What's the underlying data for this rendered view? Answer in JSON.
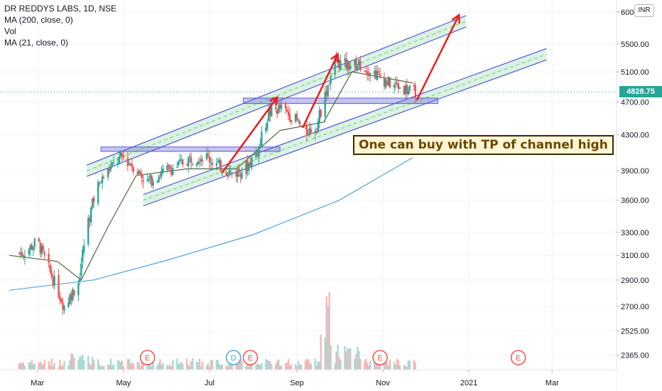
{
  "legend": {
    "title": "DR REDDYS LABS, 1D, NSE",
    "lines": [
      "MA (200, close, 0)",
      "Vol",
      "MA (21, close, 0)"
    ]
  },
  "currency_badge": "INR",
  "annotation_text": "One can buy with TP of channel high",
  "last_price_label": "4828.75",
  "colors": {
    "up": "#26a69a",
    "down": "#ef5350",
    "ma200": "#4fa3e0",
    "ma21": "#4a6b3a",
    "channel": "#3b3bd6",
    "channel_fill": "#d6f1df",
    "zone": "#5b5bd6",
    "arrow": "#ee1c1c",
    "event_red": "#ef5350",
    "event_blue": "#4fa3e0"
  },
  "chart_data": {
    "type": "candlestick",
    "symbol": "DR REDDYS LABS, 1D, NSE",
    "y_axis": {
      "ticks": [
        "6000.00",
        "5500.00",
        "5100.00",
        "4700.00",
        "4300.00",
        "3900.00",
        "3600.00",
        "3300.00",
        "3100.00",
        "2900.00",
        "2700.00",
        "2525.00",
        "2365.00"
      ],
      "scale": "log",
      "range": [
        2300,
        6150
      ]
    },
    "x_axis": {
      "ticks": [
        "Mar",
        "May",
        "Jul",
        "Sep",
        "Nov",
        "2021",
        "Mar"
      ]
    },
    "last_price": 4828.75,
    "close_series": [
      {
        "date": "2020-02-20",
        "close": 3120
      },
      {
        "date": "2020-03-01",
        "close": 3220
      },
      {
        "date": "2020-03-10",
        "close": 2960
      },
      {
        "date": "2020-03-20",
        "close": 2700
      },
      {
        "date": "2020-03-30",
        "close": 2880
      },
      {
        "date": "2020-04-05",
        "close": 3350
      },
      {
        "date": "2020-04-12",
        "close": 3720
      },
      {
        "date": "2020-04-20",
        "close": 3900
      },
      {
        "date": "2020-04-30",
        "close": 4050
      },
      {
        "date": "2020-05-08",
        "close": 3950
      },
      {
        "date": "2020-05-18",
        "close": 3780
      },
      {
        "date": "2020-05-28",
        "close": 3880
      },
      {
        "date": "2020-06-08",
        "close": 3950
      },
      {
        "date": "2020-06-18",
        "close": 4040
      },
      {
        "date": "2020-06-28",
        "close": 4060
      },
      {
        "date": "2020-07-08",
        "close": 3950
      },
      {
        "date": "2020-07-18",
        "close": 3860
      },
      {
        "date": "2020-07-28",
        "close": 3950
      },
      {
        "date": "2020-08-05",
        "close": 4150
      },
      {
        "date": "2020-08-12",
        "close": 4560
      },
      {
        "date": "2020-08-20",
        "close": 4620
      },
      {
        "date": "2020-08-30",
        "close": 4500
      },
      {
        "date": "2020-09-07",
        "close": 4330
      },
      {
        "date": "2020-09-15",
        "close": 4400
      },
      {
        "date": "2020-09-22",
        "close": 4850
      },
      {
        "date": "2020-09-28",
        "close": 5250
      },
      {
        "date": "2020-10-05",
        "close": 5200
      },
      {
        "date": "2020-10-15",
        "close": 5200
      },
      {
        "date": "2020-10-25",
        "close": 5100
      },
      {
        "date": "2020-11-05",
        "close": 4950
      },
      {
        "date": "2020-11-15",
        "close": 4880
      },
      {
        "date": "2020-11-22",
        "close": 4828.75
      }
    ],
    "ma200": [
      {
        "date": "2020-02-10",
        "value": 2820
      },
      {
        "date": "2020-04-10",
        "value": 2900
      },
      {
        "date": "2020-06-01",
        "value": 3060
      },
      {
        "date": "2020-08-01",
        "value": 3280
      },
      {
        "date": "2020-10-01",
        "value": 3600
      },
      {
        "date": "2020-11-22",
        "value": 4040
      }
    ],
    "ma21": [
      {
        "date": "2020-02-10",
        "value": 3100
      },
      {
        "date": "2020-03-15",
        "value": 3050
      },
      {
        "date": "2020-04-01",
        "value": 2900
      },
      {
        "date": "2020-04-20",
        "value": 3350
      },
      {
        "date": "2020-05-10",
        "value": 3850
      },
      {
        "date": "2020-06-15",
        "value": 3920
      },
      {
        "date": "2020-07-20",
        "value": 3920
      },
      {
        "date": "2020-08-20",
        "value": 4350
      },
      {
        "date": "2020-09-20",
        "value": 4450
      },
      {
        "date": "2020-10-10",
        "value": 5100
      },
      {
        "date": "2020-11-22",
        "value": 4950
      }
    ],
    "channels": [
      {
        "start": {
          "date": "2020-04-05",
          "value": 3900
        },
        "end": {
          "date": "2020-12-30",
          "value": 5850
        }
      },
      {
        "start": {
          "date": "2020-05-15",
          "value": 3600
        },
        "end": {
          "date": "2021-02-25",
          "value": 5350
        }
      }
    ],
    "resistance_zones": [
      {
        "start": "2020-04-15",
        "end": "2020-08-20",
        "low": 4110,
        "high": 4160
      },
      {
        "start": "2020-07-25",
        "end": "2020-12-10",
        "low": 4680,
        "high": 4750
      }
    ],
    "arrows": [
      {
        "from": {
          "date": "2020-07-10",
          "value": 3880
        },
        "to": {
          "date": "2020-08-18",
          "value": 4760
        }
      },
      {
        "from": {
          "date": "2020-09-05",
          "value": 4380
        },
        "to": {
          "date": "2020-09-30",
          "value": 5350
        }
      },
      {
        "from": {
          "date": "2020-11-25",
          "value": 4720
        },
        "to": {
          "date": "2020-12-25",
          "value": 5950
        }
      }
    ],
    "events": [
      {
        "date": "2020-05-18",
        "label": "E"
      },
      {
        "date": "2020-07-18",
        "label": "D"
      },
      {
        "date": "2020-07-30",
        "label": "E"
      },
      {
        "date": "2020-10-30",
        "label": "E"
      },
      {
        "date": "2021-02-05",
        "label": "E"
      }
    ]
  }
}
